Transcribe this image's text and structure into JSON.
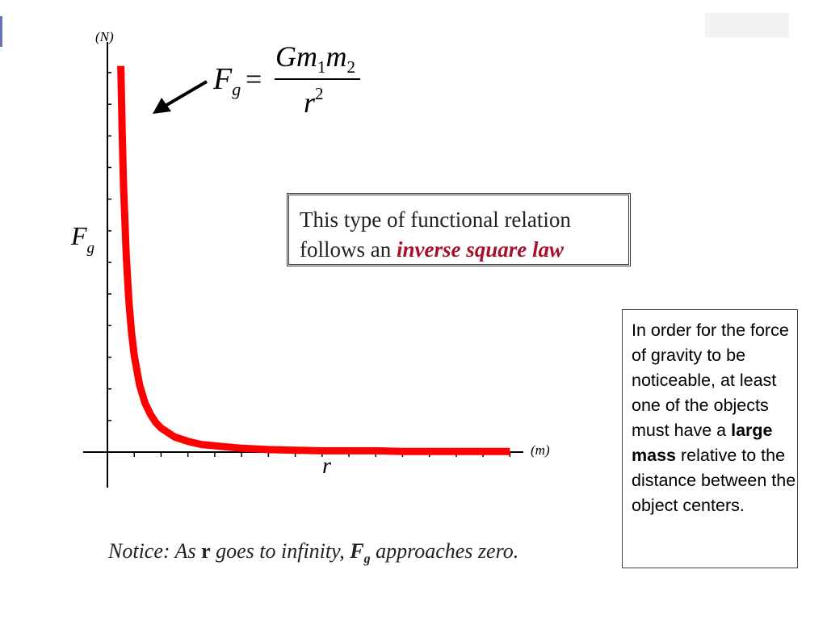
{
  "chart_data": {
    "type": "line",
    "title": "",
    "ylabel": "F",
    "ylabel_sub": "g",
    "xlabel": "r",
    "y_unit": "(N)",
    "x_unit": "(m)",
    "series": [
      {
        "x": [
          0.5,
          0.55,
          0.6,
          0.7,
          0.8,
          0.9,
          1,
          1.2,
          1.4,
          1.6,
          1.8,
          2,
          2.5,
          3,
          3.5,
          4,
          5,
          6,
          7,
          8,
          9,
          10,
          11,
          12,
          13,
          14,
          15
        ],
        "y": [
          6.12,
          5.06,
          4.25,
          3.12,
          2.39,
          1.89,
          1.53,
          1.06,
          0.78,
          0.6,
          0.47,
          0.38,
          0.24,
          0.17,
          0.12,
          0.1,
          0.06,
          0.04,
          0.03,
          0.02,
          0.02,
          0.02,
          0.01,
          0.01,
          0.01,
          0.01,
          0.01
        ],
        "color": "#ff0000"
      }
    ],
    "xlim": [
      0,
      15.5
    ],
    "ylim": [
      0,
      6.5
    ],
    "grid": false
  },
  "formula": {
    "lhs": "F",
    "lhs_sub": "g",
    "eq": "=",
    "num_G": "Gm",
    "num_sub1": "1",
    "num_m": "m",
    "num_sub2": "2",
    "den": "r",
    "den_sup": "2"
  },
  "callout": {
    "line1": "This type of functional relation",
    "line2_pre": "follows an ",
    "line2_em": "inverse square law"
  },
  "side_note": {
    "pre": "In order for the force of gravity to be noticeable, at least one of the objects must have a ",
    "bold": "large mass",
    "post": " relative to the distance between the object centers."
  },
  "notice": {
    "lead": "Notice:  As ",
    "r": "r",
    "mid": " goes to infinity, ",
    "F": "F",
    "F_sub": "g",
    "tail": " approaches zero."
  },
  "colors": {
    "curve": "#ff0000",
    "emphasis": "#a8102a"
  }
}
